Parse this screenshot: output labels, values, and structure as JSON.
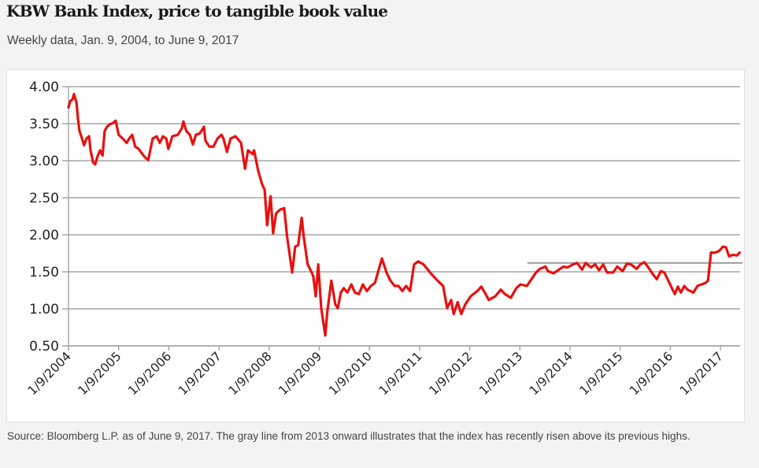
{
  "header": {
    "title": "KBW Bank Index, price to tangible book value",
    "subtitle": "Weekly data, Jan. 9, 2004, to June 9, 2017"
  },
  "footer": {
    "source": "Source: Bloomberg L.P. as of June 9, 2017. The gray line from 2013 onward illustrates that the index has recently risen above its previous highs."
  },
  "colors": {
    "series": "#e8100f",
    "reference_line": "#9a9a9a",
    "grid": "#a6a6a6"
  },
  "chart_data": {
    "type": "line",
    "title": "KBW Bank Index, price to tangible book value",
    "subtitle": "Weekly data, Jan. 9, 2004, to June 9, 2017",
    "xlabel": "",
    "ylabel": "",
    "xlim": [
      2004.0,
      2017.44
    ],
    "ylim": [
      0.5,
      4.0
    ],
    "grid": true,
    "legend": "none",
    "yticks": [
      4.0,
      3.5,
      3.0,
      2.5,
      2.0,
      1.5,
      1.0,
      0.5
    ],
    "ytick_labels": [
      "4.00",
      "3.50",
      "3.00",
      "2.50",
      "2.00",
      "1.50",
      "1.00",
      "0.50"
    ],
    "xticks": [
      2004,
      2005,
      2006,
      2007,
      2008,
      2009,
      2010,
      2011,
      2012,
      2013,
      2014,
      2015,
      2016,
      2017
    ],
    "xtick_labels": [
      "1/9/2004",
      "1/9/2005",
      "1/9/2006",
      "1/9/2007",
      "1/9/2008",
      "1/9/2009",
      "1/9/2010",
      "1/9/2011",
      "1/9/2012",
      "1/9/2013",
      "1/9/2014",
      "1/9/2015",
      "1/9/2016",
      "1/9/2017"
    ],
    "series": [
      {
        "name": "KBW Bank Index price to tangible book value",
        "color": "#e8100f",
        "x": [
          2004.0,
          2004.03,
          2004.08,
          2004.11,
          2004.16,
          2004.19,
          2004.22,
          2004.27,
          2004.31,
          2004.36,
          2004.41,
          2004.44,
          2004.49,
          2004.53,
          2004.58,
          2004.63,
          2004.68,
          2004.72,
          2004.77,
          2004.82,
          2004.89,
          2004.94,
          2005.0,
          2005.08,
          2005.16,
          2005.21,
          2005.27,
          2005.33,
          2005.4,
          2005.44,
          2005.52,
          2005.59,
          2005.63,
          2005.68,
          2005.76,
          2005.82,
          2005.88,
          2005.95,
          2005.99,
          2006.07,
          2006.18,
          2006.26,
          2006.29,
          2006.35,
          2006.42,
          2006.48,
          2006.54,
          2006.62,
          2006.7,
          2006.73,
          2006.81,
          2006.89,
          2006.97,
          2007.05,
          2007.09,
          2007.16,
          2007.23,
          2007.33,
          2007.44,
          2007.52,
          2007.58,
          2007.67,
          2007.7,
          2007.78,
          2007.86,
          2007.91,
          2007.96,
          2008.03,
          2008.08,
          2008.14,
          2008.22,
          2008.3,
          2008.36,
          2008.46,
          2008.52,
          2008.58,
          2008.65,
          2008.69,
          2008.77,
          2008.85,
          2008.88,
          2008.93,
          2008.98,
          2009.04,
          2009.12,
          2009.16,
          2009.24,
          2009.32,
          2009.37,
          2009.43,
          2009.49,
          2009.56,
          2009.64,
          2009.71,
          2009.79,
          2009.87,
          2009.95,
          2010.03,
          2010.11,
          2010.19,
          2010.25,
          2010.34,
          2010.42,
          2010.5,
          2010.58,
          2010.66,
          2010.73,
          2010.81,
          2010.89,
          2010.97,
          2011.08,
          2011.21,
          2011.36,
          2011.47,
          2011.55,
          2011.63,
          2011.68,
          2011.76,
          2011.83,
          2011.91,
          2012.02,
          2012.15,
          2012.23,
          2012.3,
          2012.38,
          2012.51,
          2012.62,
          2012.7,
          2012.82,
          2012.93,
          2013.01,
          2013.14,
          2013.21,
          2013.32,
          2013.4,
          2013.51,
          2013.56,
          2013.67,
          2013.8,
          2013.87,
          2013.95,
          2014.06,
          2014.14,
          2014.24,
          2014.31,
          2014.42,
          2014.5,
          2014.58,
          2014.66,
          2014.74,
          2014.86,
          2014.94,
          2015.05,
          2015.13,
          2015.21,
          2015.33,
          2015.4,
          2015.48,
          2015.55,
          2015.65,
          2015.73,
          2015.81,
          2015.88,
          2015.96,
          2016.03,
          2016.09,
          2016.15,
          2016.21,
          2016.28,
          2016.34,
          2016.4,
          2016.46,
          2016.54,
          2016.62,
          2016.7,
          2016.75,
          2016.81,
          2016.89,
          2016.97,
          2017.05,
          2017.11,
          2017.17,
          2017.25,
          2017.33,
          2017.38
        ],
        "y": [
          3.72,
          3.8,
          3.83,
          3.9,
          3.78,
          3.56,
          3.4,
          3.3,
          3.21,
          3.3,
          3.33,
          3.14,
          2.98,
          2.95,
          3.06,
          3.14,
          3.07,
          3.4,
          3.46,
          3.49,
          3.51,
          3.54,
          3.35,
          3.3,
          3.24,
          3.3,
          3.35,
          3.19,
          3.16,
          3.12,
          3.05,
          3.01,
          3.14,
          3.3,
          3.33,
          3.24,
          3.33,
          3.3,
          3.16,
          3.33,
          3.35,
          3.44,
          3.53,
          3.4,
          3.35,
          3.22,
          3.35,
          3.37,
          3.46,
          3.27,
          3.19,
          3.19,
          3.3,
          3.35,
          3.3,
          3.12,
          3.3,
          3.33,
          3.24,
          2.89,
          3.14,
          3.09,
          3.14,
          2.87,
          2.68,
          2.61,
          2.13,
          2.52,
          2.02,
          2.29,
          2.34,
          2.36,
          1.97,
          1.49,
          1.84,
          1.86,
          2.23,
          1.97,
          1.6,
          1.49,
          1.44,
          1.17,
          1.6,
          1.01,
          0.64,
          0.96,
          1.38,
          1.06,
          1.01,
          1.22,
          1.28,
          1.22,
          1.33,
          1.22,
          1.2,
          1.33,
          1.24,
          1.31,
          1.35,
          1.54,
          1.68,
          1.49,
          1.38,
          1.31,
          1.31,
          1.24,
          1.31,
          1.24,
          1.6,
          1.64,
          1.6,
          1.49,
          1.38,
          1.31,
          1.01,
          1.12,
          0.93,
          1.09,
          0.93,
          1.06,
          1.17,
          1.24,
          1.3,
          1.22,
          1.12,
          1.17,
          1.26,
          1.2,
          1.15,
          1.28,
          1.33,
          1.31,
          1.38,
          1.49,
          1.54,
          1.57,
          1.51,
          1.48,
          1.54,
          1.57,
          1.56,
          1.6,
          1.62,
          1.53,
          1.62,
          1.56,
          1.6,
          1.52,
          1.6,
          1.49,
          1.49,
          1.57,
          1.51,
          1.61,
          1.6,
          1.54,
          1.6,
          1.63,
          1.57,
          1.47,
          1.4,
          1.51,
          1.49,
          1.38,
          1.28,
          1.2,
          1.3,
          1.22,
          1.31,
          1.26,
          1.24,
          1.22,
          1.31,
          1.33,
          1.35,
          1.38,
          1.76,
          1.76,
          1.78,
          1.84,
          1.83,
          1.71,
          1.73,
          1.72,
          1.76
        ]
      }
    ],
    "reference_lines": [
      {
        "name": "previous highs (gray line from 2013 onward)",
        "color": "#9a9a9a",
        "x_start": 2013.15,
        "x_end": 2017.5,
        "y": 1.62
      }
    ]
  }
}
